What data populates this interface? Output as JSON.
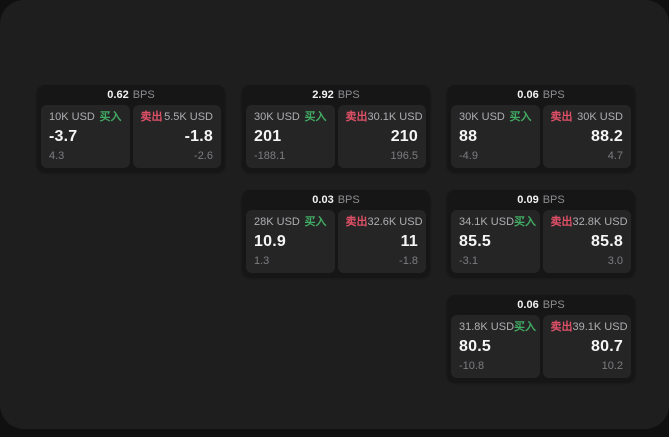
{
  "colors": {
    "panel_bg": "#1e1e1f",
    "card_bg": "#161617",
    "subpanel_bg": "#252526",
    "buy_green": "#41ab63",
    "sell_red": "#df5067"
  },
  "labels": {
    "bps": "BPS",
    "buy": "买入",
    "sell": "卖出"
  },
  "cards": [
    {
      "bps": "0.62",
      "buy": {
        "amount": "10K USD",
        "price": "-3.7",
        "delta": "4.3"
      },
      "sell": {
        "amount": "5.5K USD",
        "price": "-1.8",
        "delta": "-2.6"
      }
    },
    {
      "bps": "2.92",
      "buy": {
        "amount": "30K USD",
        "price": "201",
        "delta": "-188.1"
      },
      "sell": {
        "amount": "30.1K USD",
        "price": "210",
        "delta": "196.5"
      }
    },
    {
      "bps": "0.06",
      "buy": {
        "amount": "30K USD",
        "price": "88",
        "delta": "-4.9"
      },
      "sell": {
        "amount": "30K USD",
        "price": "88.2",
        "delta": "4.7"
      }
    },
    {
      "bps": "0.03",
      "buy": {
        "amount": "28K USD",
        "price": "10.9",
        "delta": "1.3"
      },
      "sell": {
        "amount": "32.6K USD",
        "price": "11",
        "delta": "-1.8"
      }
    },
    {
      "bps": "0.09",
      "buy": {
        "amount": "34.1K USD",
        "price": "85.5",
        "delta": "-3.1"
      },
      "sell": {
        "amount": "32.8K USD",
        "price": "85.8",
        "delta": "3.0"
      }
    },
    {
      "bps": "0.06",
      "buy": {
        "amount": "31.8K USD",
        "price": "80.5",
        "delta": "-10.8"
      },
      "sell": {
        "amount": "39.1K USD",
        "price": "80.7",
        "delta": "10.2"
      }
    }
  ]
}
